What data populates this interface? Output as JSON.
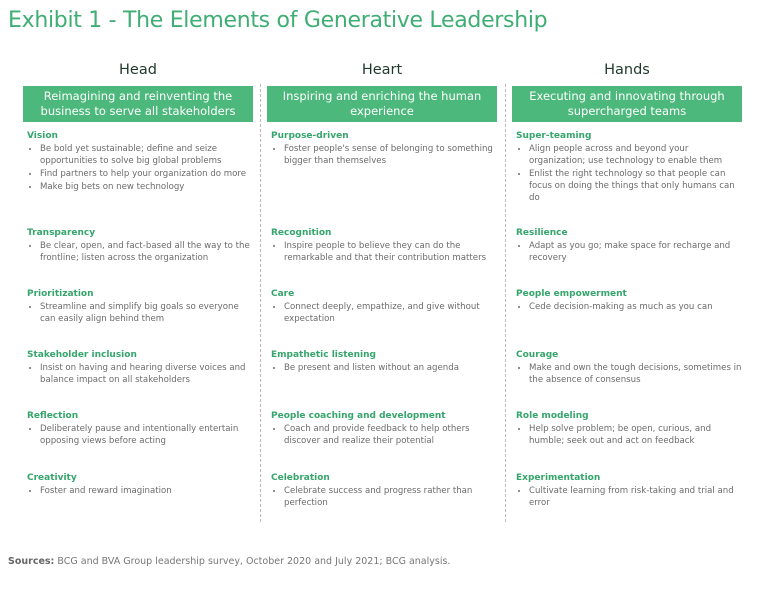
{
  "title": "Exhibit 1 - The Elements of Generative Leadership",
  "columns": [
    {
      "heading": "Head",
      "banner": "Reimagining and reinventing the business to serve all stakeholders",
      "sections": [
        {
          "title": "Vision",
          "items": [
            "Be bold yet sustainable; define and seize opportunities to solve big global problems",
            "Find partners to help your organization do more",
            "Make big bets on new technology"
          ]
        },
        {
          "title": "Transparency",
          "items": [
            "Be clear, open, and fact-based all the way to the frontline; listen across the organization"
          ]
        },
        {
          "title": "Prioritization",
          "items": [
            "Streamline and simplify big goals so everyone can easily align behind them"
          ]
        },
        {
          "title": "Stakeholder inclusion",
          "items": [
            "Insist on having and hearing diverse voices and balance impact on all stakeholders"
          ]
        },
        {
          "title": "Reflection",
          "items": [
            "Deliberately pause and intentionally entertain opposing views before acting"
          ]
        },
        {
          "title": "Creativity",
          "items": [
            "Foster and reward imagination"
          ]
        }
      ]
    },
    {
      "heading": "Heart",
      "banner": "Inspiring and enriching the human experience",
      "sections": [
        {
          "title": "Purpose-driven",
          "items": [
            "Foster people's sense of belonging to something bigger than themselves"
          ]
        },
        {
          "title": "Recognition",
          "items": [
            "Inspire people to believe they can do the remarkable and that their contribution matters"
          ]
        },
        {
          "title": "Care",
          "items": [
            "Connect deeply, empathize, and give without expectation"
          ]
        },
        {
          "title": "Empathetic listening",
          "items": [
            "Be present and listen without an agenda"
          ]
        },
        {
          "title": "People coaching and development",
          "items": [
            "Coach and provide feedback to help others discover and realize their potential"
          ]
        },
        {
          "title": "Celebration",
          "items": [
            "Celebrate success and progress rather than perfection"
          ]
        }
      ]
    },
    {
      "heading": "Hands",
      "banner": "Executing and innovating through supercharged teams",
      "sections": [
        {
          "title": "Super-teaming",
          "items": [
            "Align people across and beyond your organization; use technology to enable them",
            "Enlist the right technology so that people can focus on doing the things that only humans can do"
          ]
        },
        {
          "title": "Resilience",
          "items": [
            "Adapt as you go; make space for recharge and recovery"
          ]
        },
        {
          "title": "People empowerment",
          "items": [
            "Cede decision-making as much as you can"
          ]
        },
        {
          "title": "Courage",
          "items": [
            "Make and own the tough decisions, sometimes in the absence of consensus"
          ]
        },
        {
          "title": "Role modeling",
          "items": [
            "Help solve problem; be open, curious, and humble; seek out and act on feedback"
          ]
        },
        {
          "title": "Experimentation",
          "items": [
            "Cultivate learning from risk-taking and trial and error"
          ]
        }
      ]
    }
  ],
  "sources": {
    "label": "Sources:",
    "text": "BCG and BVA Group leadership survey, October 2020 and July 2021; BCG analysis."
  },
  "colors": {
    "accent": "#4cb87c",
    "section_title": "#35a56c",
    "title": "#3fae74"
  }
}
